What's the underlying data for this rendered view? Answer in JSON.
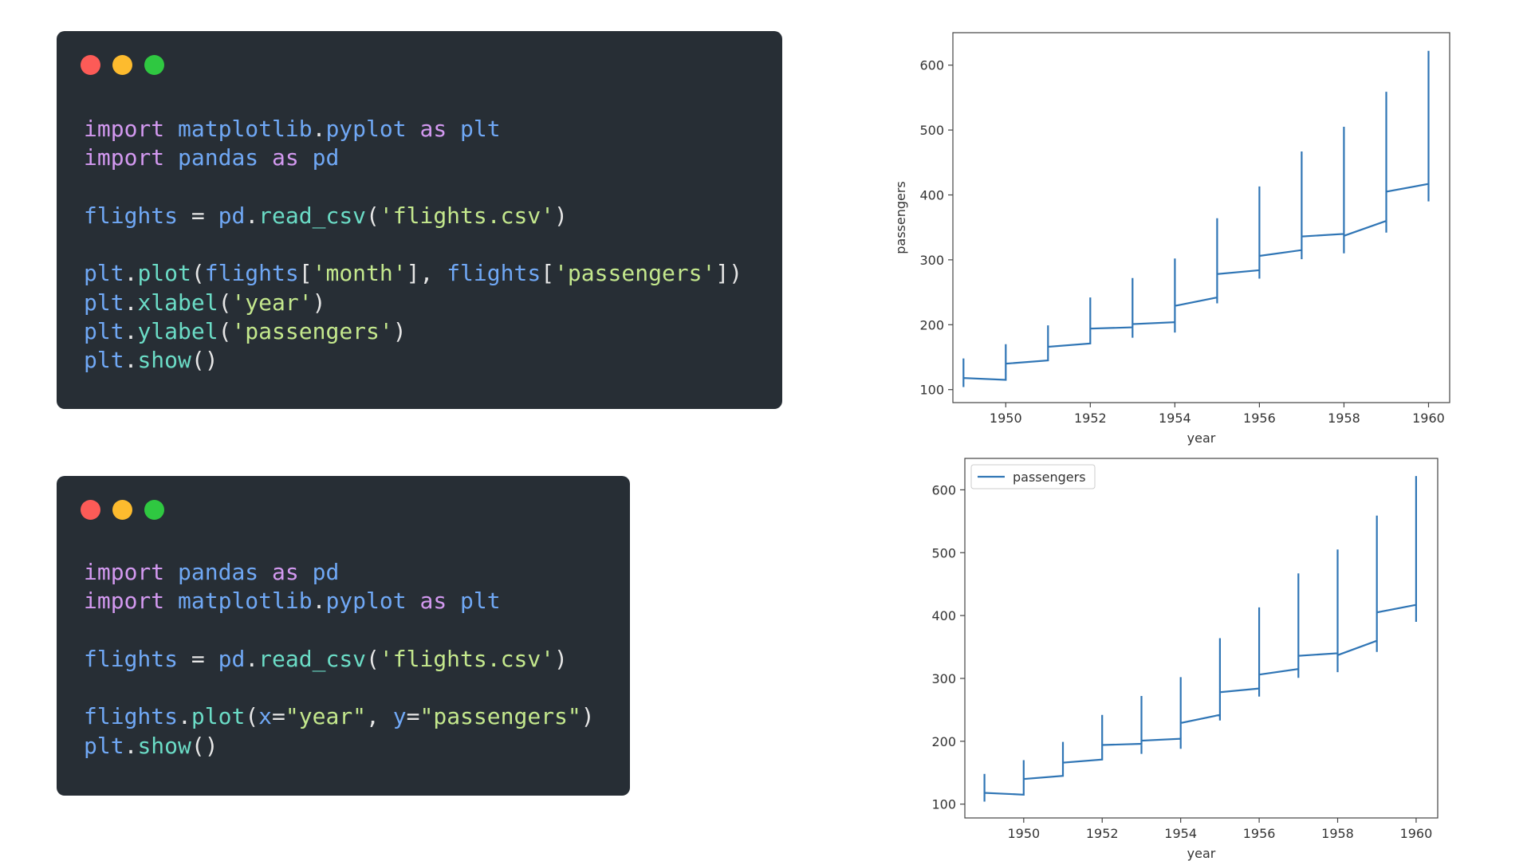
{
  "window_dots": [
    "#fc5b57",
    "#fdbb2e",
    "#2fc841"
  ],
  "syntax_colors": {
    "kw": "#d399f0",
    "mod": "#70a8f5",
    "fn": "#6bdcc6",
    "str": "#c4e88d",
    "plain": "#e6e6e6"
  },
  "code_blocks": [
    {
      "lines": [
        [
          [
            "kw",
            "import"
          ],
          [
            "plain",
            " "
          ],
          [
            "mod",
            "matplotlib"
          ],
          [
            "plain",
            "."
          ],
          [
            "mod",
            "pyplot"
          ],
          [
            "plain",
            " "
          ],
          [
            "kw",
            "as"
          ],
          [
            "plain",
            " "
          ],
          [
            "mod",
            "plt"
          ]
        ],
        [
          [
            "kw",
            "import"
          ],
          [
            "plain",
            " "
          ],
          [
            "mod",
            "pandas"
          ],
          [
            "plain",
            " "
          ],
          [
            "kw",
            "as"
          ],
          [
            "plain",
            " "
          ],
          [
            "mod",
            "pd"
          ]
        ],
        [],
        [
          [
            "mod",
            "flights"
          ],
          [
            "plain",
            " = "
          ],
          [
            "mod",
            "pd"
          ],
          [
            "plain",
            "."
          ],
          [
            "fn",
            "read_csv"
          ],
          [
            "plain",
            "("
          ],
          [
            "str",
            "'flights.csv'"
          ],
          [
            "plain",
            ")"
          ]
        ],
        [],
        [
          [
            "mod",
            "plt"
          ],
          [
            "plain",
            "."
          ],
          [
            "fn",
            "plot"
          ],
          [
            "plain",
            "("
          ],
          [
            "mod",
            "flights"
          ],
          [
            "plain",
            "["
          ],
          [
            "str",
            "'month'"
          ],
          [
            "plain",
            "], "
          ],
          [
            "mod",
            "flights"
          ],
          [
            "plain",
            "["
          ],
          [
            "str",
            "'passengers'"
          ],
          [
            "plain",
            "])"
          ]
        ],
        [
          [
            "mod",
            "plt"
          ],
          [
            "plain",
            "."
          ],
          [
            "fn",
            "xlabel"
          ],
          [
            "plain",
            "("
          ],
          [
            "str",
            "'year'"
          ],
          [
            "plain",
            ")"
          ]
        ],
        [
          [
            "mod",
            "plt"
          ],
          [
            "plain",
            "."
          ],
          [
            "fn",
            "ylabel"
          ],
          [
            "plain",
            "("
          ],
          [
            "str",
            "'passengers'"
          ],
          [
            "plain",
            ")"
          ]
        ],
        [
          [
            "mod",
            "plt"
          ],
          [
            "plain",
            "."
          ],
          [
            "fn",
            "show"
          ],
          [
            "plain",
            "()"
          ]
        ]
      ]
    },
    {
      "lines": [
        [
          [
            "kw",
            "import"
          ],
          [
            "plain",
            " "
          ],
          [
            "mod",
            "pandas"
          ],
          [
            "plain",
            " "
          ],
          [
            "kw",
            "as"
          ],
          [
            "plain",
            " "
          ],
          [
            "mod",
            "pd"
          ]
        ],
        [
          [
            "kw",
            "import"
          ],
          [
            "plain",
            " "
          ],
          [
            "mod",
            "matplotlib"
          ],
          [
            "plain",
            "."
          ],
          [
            "mod",
            "pyplot"
          ],
          [
            "plain",
            " "
          ],
          [
            "kw",
            "as"
          ],
          [
            "plain",
            " "
          ],
          [
            "mod",
            "plt"
          ]
        ],
        [],
        [
          [
            "mod",
            "flights"
          ],
          [
            "plain",
            " = "
          ],
          [
            "mod",
            "pd"
          ],
          [
            "plain",
            "."
          ],
          [
            "fn",
            "read_csv"
          ],
          [
            "plain",
            "("
          ],
          [
            "str",
            "'flights.csv'"
          ],
          [
            "plain",
            ")"
          ]
        ],
        [],
        [
          [
            "mod",
            "flights"
          ],
          [
            "plain",
            "."
          ],
          [
            "fn",
            "plot"
          ],
          [
            "plain",
            "("
          ],
          [
            "mod",
            "x"
          ],
          [
            "plain",
            "="
          ],
          [
            "str",
            "\"year\""
          ],
          [
            "plain",
            ", "
          ],
          [
            "mod",
            "y"
          ],
          [
            "plain",
            "="
          ],
          [
            "str",
            "\"passengers\""
          ],
          [
            "plain",
            ")"
          ]
        ],
        [
          [
            "mod",
            "plt"
          ],
          [
            "plain",
            "."
          ],
          [
            "fn",
            "show"
          ],
          [
            "plain",
            "()"
          ]
        ]
      ]
    }
  ],
  "chart_data": [
    {
      "type": "line",
      "xlabel": "year",
      "ylabel": "passengers",
      "xlim": [
        1948.75,
        1960.5
      ],
      "ylim": [
        80,
        650
      ],
      "xticks": [
        1950,
        1952,
        1954,
        1956,
        1958,
        1960
      ],
      "yticks": [
        100,
        200,
        300,
        400,
        500,
        600
      ],
      "legend": null,
      "color": "#2f75b5",
      "series": [
        {
          "x": [
            1949,
            1949,
            1949,
            1949,
            1949,
            1949,
            1949,
            1949,
            1949,
            1949,
            1949,
            1949,
            1950,
            1950,
            1950,
            1950,
            1950,
            1950,
            1950,
            1950,
            1950,
            1950,
            1950,
            1950,
            1951,
            1951,
            1951,
            1951,
            1951,
            1951,
            1951,
            1951,
            1951,
            1951,
            1951,
            1951,
            1952,
            1952,
            1952,
            1952,
            1952,
            1952,
            1952,
            1952,
            1952,
            1952,
            1952,
            1952,
            1953,
            1953,
            1953,
            1953,
            1953,
            1953,
            1953,
            1953,
            1953,
            1953,
            1953,
            1953,
            1954,
            1954,
            1954,
            1954,
            1954,
            1954,
            1954,
            1954,
            1954,
            1954,
            1954,
            1954,
            1955,
            1955,
            1955,
            1955,
            1955,
            1955,
            1955,
            1955,
            1955,
            1955,
            1955,
            1955,
            1956,
            1956,
            1956,
            1956,
            1956,
            1956,
            1956,
            1956,
            1956,
            1956,
            1956,
            1956,
            1957,
            1957,
            1957,
            1957,
            1957,
            1957,
            1957,
            1957,
            1957,
            1957,
            1957,
            1957,
            1958,
            1958,
            1958,
            1958,
            1958,
            1958,
            1958,
            1958,
            1958,
            1958,
            1958,
            1958,
            1959,
            1959,
            1959,
            1959,
            1959,
            1959,
            1959,
            1959,
            1959,
            1959,
            1959,
            1959,
            1960,
            1960,
            1960,
            1960,
            1960,
            1960,
            1960,
            1960,
            1960,
            1960,
            1960,
            1960
          ],
          "y": [
            112,
            118,
            132,
            129,
            121,
            135,
            148,
            148,
            136,
            119,
            104,
            118,
            115,
            126,
            141,
            135,
            125,
            149,
            170,
            170,
            158,
            133,
            114,
            140,
            145,
            150,
            178,
            163,
            172,
            178,
            199,
            199,
            184,
            162,
            146,
            166,
            171,
            180,
            193,
            181,
            183,
            218,
            230,
            242,
            209,
            191,
            172,
            194,
            196,
            196,
            236,
            235,
            229,
            243,
            264,
            272,
            237,
            211,
            180,
            201,
            204,
            188,
            235,
            227,
            234,
            264,
            302,
            293,
            259,
            229,
            203,
            229,
            242,
            233,
            267,
            269,
            270,
            315,
            364,
            347,
            312,
            274,
            237,
            278,
            284,
            277,
            317,
            313,
            318,
            374,
            413,
            405,
            355,
            306,
            271,
            306,
            315,
            301,
            356,
            348,
            355,
            422,
            465,
            467,
            404,
            347,
            305,
            336,
            340,
            318,
            362,
            348,
            363,
            435,
            491,
            505,
            404,
            359,
            310,
            337,
            360,
            342,
            406,
            396,
            420,
            472,
            548,
            559,
            463,
            407,
            362,
            405,
            417,
            391,
            419,
            461,
            472,
            535,
            622,
            606,
            508,
            461,
            390,
            432
          ]
        }
      ]
    },
    {
      "type": "line",
      "xlabel": "year",
      "ylabel": "",
      "xlim": [
        1948.5,
        1960.55
      ],
      "ylim": [
        78,
        650
      ],
      "xticks": [
        1950,
        1952,
        1954,
        1956,
        1958,
        1960
      ],
      "yticks": [
        100,
        200,
        300,
        400,
        500,
        600
      ],
      "legend": "top-left",
      "color": "#2f75b5",
      "series": [
        {
          "name": "passengers",
          "x": [
            1949,
            1949,
            1949,
            1949,
            1949,
            1949,
            1949,
            1949,
            1949,
            1949,
            1949,
            1949,
            1950,
            1950,
            1950,
            1950,
            1950,
            1950,
            1950,
            1950,
            1950,
            1950,
            1950,
            1950,
            1951,
            1951,
            1951,
            1951,
            1951,
            1951,
            1951,
            1951,
            1951,
            1951,
            1951,
            1951,
            1952,
            1952,
            1952,
            1952,
            1952,
            1952,
            1952,
            1952,
            1952,
            1952,
            1952,
            1952,
            1953,
            1953,
            1953,
            1953,
            1953,
            1953,
            1953,
            1953,
            1953,
            1953,
            1953,
            1953,
            1954,
            1954,
            1954,
            1954,
            1954,
            1954,
            1954,
            1954,
            1954,
            1954,
            1954,
            1954,
            1955,
            1955,
            1955,
            1955,
            1955,
            1955,
            1955,
            1955,
            1955,
            1955,
            1955,
            1955,
            1956,
            1956,
            1956,
            1956,
            1956,
            1956,
            1956,
            1956,
            1956,
            1956,
            1956,
            1956,
            1957,
            1957,
            1957,
            1957,
            1957,
            1957,
            1957,
            1957,
            1957,
            1957,
            1957,
            1957,
            1958,
            1958,
            1958,
            1958,
            1958,
            1958,
            1958,
            1958,
            1958,
            1958,
            1958,
            1958,
            1959,
            1959,
            1959,
            1959,
            1959,
            1959,
            1959,
            1959,
            1959,
            1959,
            1959,
            1959,
            1960,
            1960,
            1960,
            1960,
            1960,
            1960,
            1960,
            1960,
            1960,
            1960,
            1960,
            1960
          ],
          "y": [
            112,
            118,
            132,
            129,
            121,
            135,
            148,
            148,
            136,
            119,
            104,
            118,
            115,
            126,
            141,
            135,
            125,
            149,
            170,
            170,
            158,
            133,
            114,
            140,
            145,
            150,
            178,
            163,
            172,
            178,
            199,
            199,
            184,
            162,
            146,
            166,
            171,
            180,
            193,
            181,
            183,
            218,
            230,
            242,
            209,
            191,
            172,
            194,
            196,
            196,
            236,
            235,
            229,
            243,
            264,
            272,
            237,
            211,
            180,
            201,
            204,
            188,
            235,
            227,
            234,
            264,
            302,
            293,
            259,
            229,
            203,
            229,
            242,
            233,
            267,
            269,
            270,
            315,
            364,
            347,
            312,
            274,
            237,
            278,
            284,
            277,
            317,
            313,
            318,
            374,
            413,
            405,
            355,
            306,
            271,
            306,
            315,
            301,
            356,
            348,
            355,
            422,
            465,
            467,
            404,
            347,
            305,
            336,
            340,
            318,
            362,
            348,
            363,
            435,
            491,
            505,
            404,
            359,
            310,
            337,
            360,
            342,
            406,
            396,
            420,
            472,
            548,
            559,
            463,
            407,
            362,
            405,
            417,
            391,
            419,
            461,
            472,
            535,
            622,
            606,
            508,
            461,
            390,
            432
          ]
        }
      ]
    }
  ]
}
